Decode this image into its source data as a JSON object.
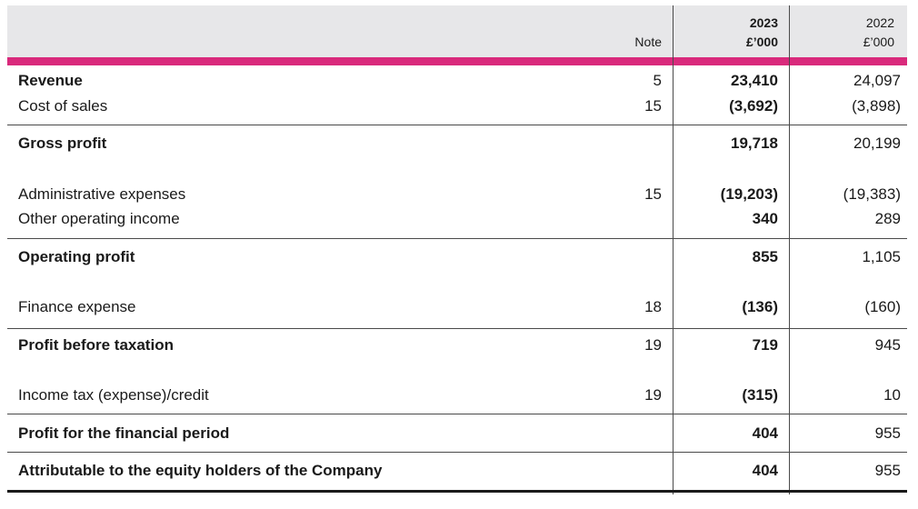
{
  "header": {
    "note_label": "Note",
    "year_current": "2023",
    "unit_current": "£’000",
    "year_prior": "2022",
    "unit_prior": "£’000"
  },
  "rows": [
    {
      "label": "Revenue",
      "note": "5",
      "v2023": "23,410",
      "v2022": "24,097",
      "bold": true
    },
    {
      "label": "Cost of sales",
      "note": "15",
      "v2023": "(3,692)",
      "v2022": "(3,898)",
      "bold": false
    },
    {
      "label": "Gross profit",
      "note": "",
      "v2023": "19,718",
      "v2022": "20,199",
      "bold": true
    },
    {
      "label": "Administrative expenses",
      "note": "15",
      "v2023": "(19,203)",
      "v2022": "(19,383)",
      "bold": false
    },
    {
      "label": "Other operating income",
      "note": "",
      "v2023": "340",
      "v2022": "289",
      "bold": false
    },
    {
      "label": "Operating profit",
      "note": "",
      "v2023": "855",
      "v2022": "1,105",
      "bold": true
    },
    {
      "label": "Finance expense",
      "note": "18",
      "v2023": "(136)",
      "v2022": "(160)",
      "bold": false
    },
    {
      "label": "Profit before taxation",
      "note": "19",
      "v2023": "719",
      "v2022": "945",
      "bold": true
    },
    {
      "label": "Income tax (expense)/credit",
      "note": "19",
      "v2023": "(315)",
      "v2022": "10",
      "bold": false
    },
    {
      "label": "Profit for the financial period",
      "note": "",
      "v2023": "404",
      "v2022": "955",
      "bold": true
    },
    {
      "label": "Attributable to the equity holders of the Company",
      "note": "",
      "v2023": "404",
      "v2022": "955",
      "bold": true
    }
  ],
  "colors": {
    "accent_bar": "#d92a7c",
    "header_bg": "#e7e7e9"
  }
}
